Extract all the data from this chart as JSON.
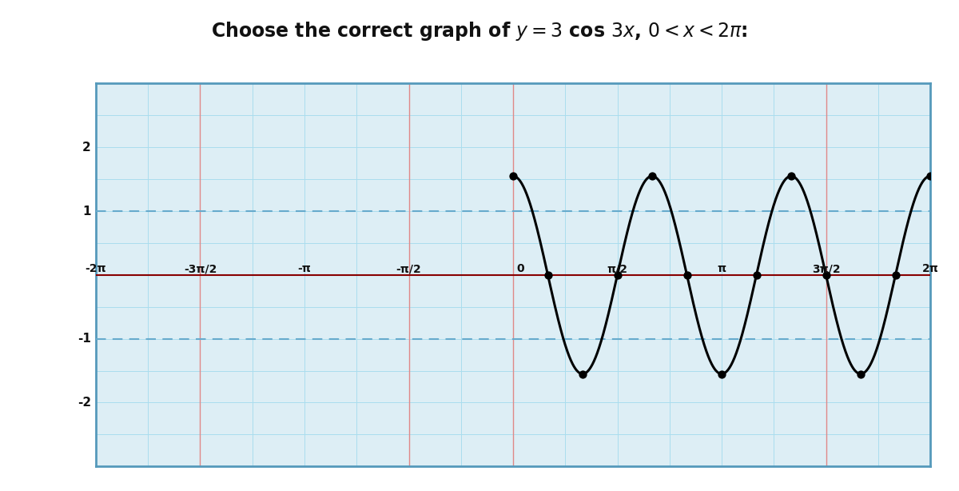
{
  "title_line1": "Choose the correct graph of ",
  "title_math": "y = 3 cos 3x, 0 < x < 2π:",
  "title_fontsize": 17,
  "title_fontweight": "bold",
  "amplitude": 1.55,
  "frequency_multiplier": 3,
  "x_start": 0.0,
  "x_end": 6.283185307179586,
  "xlim": [
    -6.283185307179586,
    6.283185307179586
  ],
  "ylim": [
    -3.0,
    3.0
  ],
  "yticks": [
    -2,
    -1,
    0,
    1,
    2
  ],
  "xtick_labels": [
    "-2π",
    "-3π/2",
    "-π",
    "-π/2",
    "0",
    "π/2",
    "π",
    "3π/2",
    "2π"
  ],
  "xtick_positions": [
    -6.283185307179586,
    -4.71238898038469,
    -3.141592653589793,
    -1.5707963267948966,
    0.0,
    1.5707963267948966,
    3.141592653589793,
    4.71238898038469,
    6.283185307179586
  ],
  "minor_grid_color": "#aaddee",
  "major_grid_color": "#e08888",
  "axis_h_color": "#880000",
  "curve_color": "#000000",
  "curve_linewidth": 2.2,
  "dot_color": "#000000",
  "dot_size": 55,
  "bg_color": "#ffffff",
  "plot_bg_color": "#ddeef5",
  "dashed_line_color": "#66aacc",
  "dashed_line_y": [
    1.0,
    -1.0
  ],
  "red_vlines": [
    -4.71238898038469,
    -1.5707963267948966,
    0.0,
    4.71238898038469
  ],
  "box_color": "#5599bb",
  "figsize": [
    12.0,
    6.14
  ],
  "dpi": 100
}
